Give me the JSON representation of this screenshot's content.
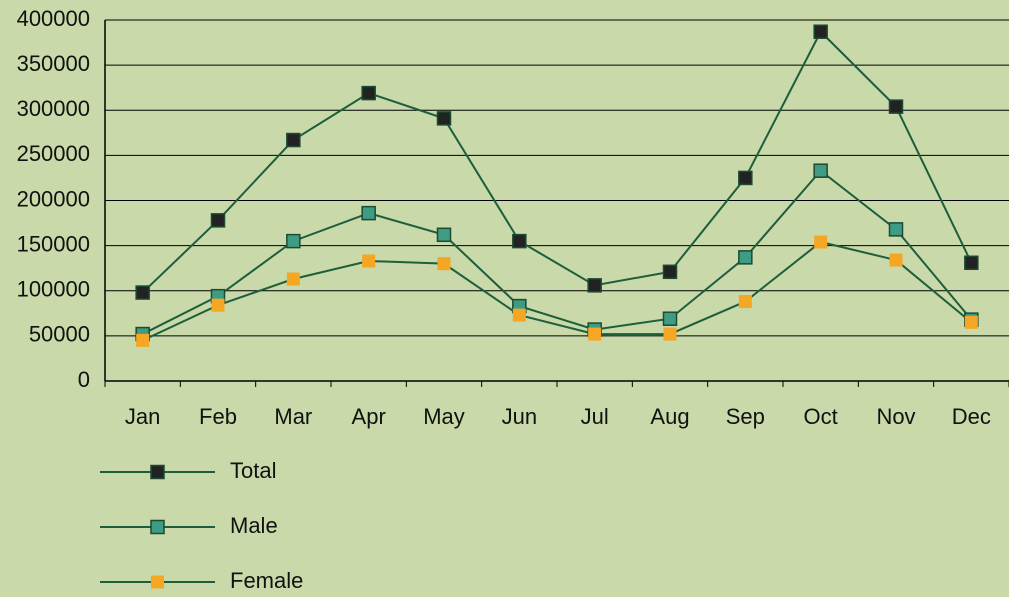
{
  "chart_data": {
    "type": "line",
    "categories": [
      "Jan",
      "Feb",
      "Mar",
      "Apr",
      "May",
      "Jun",
      "Jul",
      "Aug",
      "Sep",
      "Oct",
      "Nov",
      "Dec"
    ],
    "series": [
      {
        "name": "Total",
        "color": "#222222",
        "line_color": "#1d5e3c",
        "values": [
          98000,
          178000,
          267000,
          319000,
          291000,
          155000,
          106000,
          121000,
          225000,
          387000,
          304000,
          131000
        ]
      },
      {
        "name": "Male",
        "color": "#3f9c84",
        "line_color": "#1d5e3c",
        "values": [
          52000,
          94000,
          155000,
          186000,
          162000,
          83000,
          57000,
          69000,
          137000,
          233000,
          168000,
          68000
        ]
      },
      {
        "name": "Female",
        "color": "#f5a623",
        "line_color": "#1d5e3c",
        "values": [
          45000,
          84000,
          113000,
          133000,
          130000,
          73000,
          52000,
          52000,
          88000,
          154000,
          134000,
          65000
        ]
      }
    ],
    "ylim": [
      0,
      400000
    ],
    "yticks": [
      0,
      50000,
      100000,
      150000,
      200000,
      250000,
      300000,
      350000,
      400000
    ],
    "grid": true,
    "legend": "bottom"
  }
}
